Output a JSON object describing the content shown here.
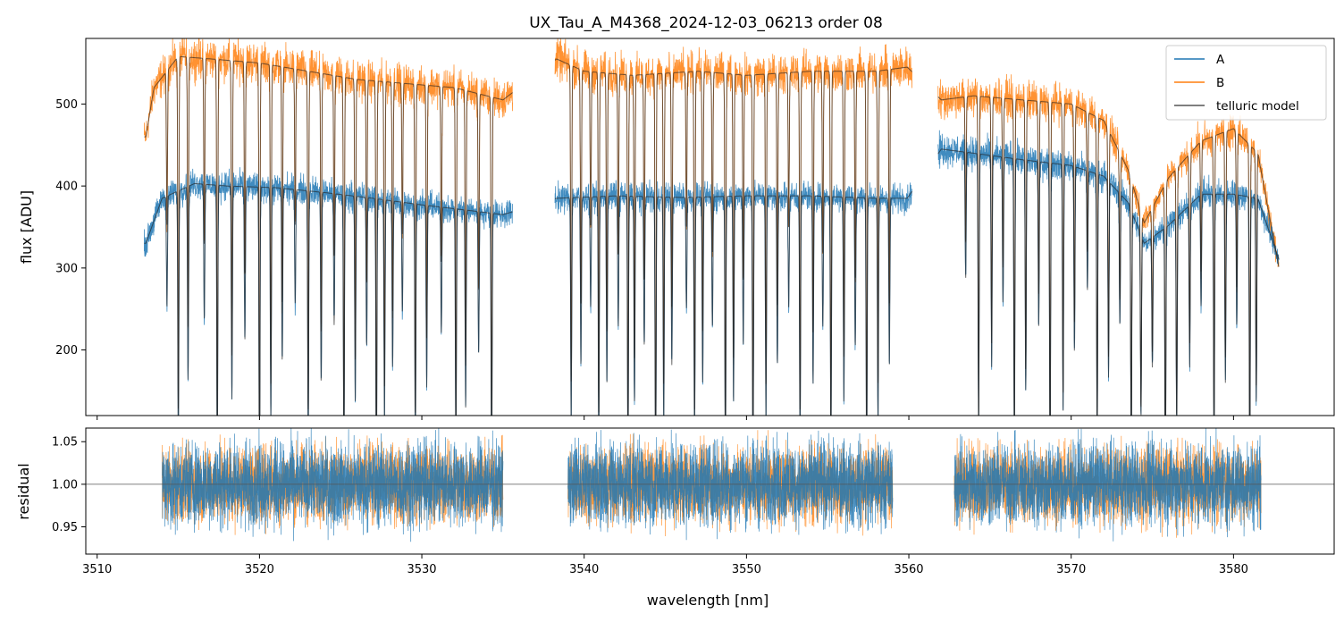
{
  "chart_data": [
    {
      "type": "line",
      "title": "UX_Tau_A_M4368_2024-12-03_06213  order 08",
      "xlabel": "",
      "ylabel": "flux [ADU]",
      "xlim": [
        3509.3,
        3586.2
      ],
      "ylim": [
        120,
        580
      ],
      "yticks": [
        200,
        300,
        400,
        500
      ],
      "grid": false,
      "legend": {
        "placement": "top-right",
        "entries": [
          {
            "label": "A",
            "color": "#1f77b4"
          },
          {
            "label": "B",
            "color": "#ff7f0e"
          },
          {
            "label": "telluric model",
            "color": "#555555"
          }
        ]
      },
      "segments": [
        [
          3512.9,
          3535.6
        ],
        [
          3538.2,
          3560.2
        ],
        [
          3561.8,
          3582.8
        ]
      ],
      "series": [
        {
          "name": "A",
          "color": "#1f77b4",
          "continuum_x": [
            3513.0,
            3514.0,
            3516.0,
            3518.0,
            3521.0,
            3524.0,
            3527.0,
            3530.0,
            3533.0,
            3535.0,
            3538.3,
            3542.0,
            3546.0,
            3550.0,
            3554.0,
            3558.0,
            3559.9,
            3562.0,
            3564.0,
            3567.0,
            3570.0,
            3572.0,
            3573.5,
            3574.5,
            3576.0,
            3578.0,
            3580.0,
            3581.5,
            3582.8
          ],
          "continuum_y": [
            330,
            385,
            403,
            400,
            398,
            392,
            385,
            377,
            370,
            365,
            385,
            388,
            386,
            388,
            388,
            385,
            385,
            445,
            440,
            432,
            425,
            412,
            380,
            330,
            352,
            390,
            390,
            385,
            310
          ]
        },
        {
          "name": "B",
          "color": "#ff7f0e",
          "continuum_x": [
            3513.0,
            3513.5,
            3515.0,
            3517.0,
            3520.0,
            3523.0,
            3526.0,
            3529.0,
            3532.0,
            3535.0,
            3538.3,
            3540.0,
            3543.0,
            3547.0,
            3550.0,
            3554.0,
            3558.0,
            3559.9,
            3562.0,
            3564.0,
            3567.0,
            3570.0,
            3572.0,
            3573.5,
            3574.5,
            3576.0,
            3578.0,
            3580.0,
            3581.5,
            3582.8
          ],
          "continuum_y": [
            460,
            520,
            558,
            555,
            550,
            540,
            530,
            525,
            520,
            505,
            555,
            540,
            535,
            540,
            535,
            540,
            540,
            545,
            505,
            510,
            505,
            500,
            480,
            420,
            355,
            410,
            455,
            470,
            440,
            300
          ]
        },
        {
          "name": "telluric model",
          "color": "#555555"
        }
      ],
      "absorption_lines_nm": [
        3514.3,
        3515.0,
        3515.6,
        3516.6,
        3517.4,
        3518.3,
        3519.1,
        3520.0,
        3520.7,
        3521.4,
        3522.2,
        3523.0,
        3523.8,
        3524.6,
        3525.2,
        3525.9,
        3526.6,
        3527.2,
        3527.7,
        3528.2,
        3528.8,
        3529.6,
        3530.3,
        3531.2,
        3532.1,
        3532.7,
        3533.5,
        3534.3,
        3539.2,
        3539.8,
        3540.4,
        3540.9,
        3541.4,
        3542.1,
        3542.7,
        3543.1,
        3543.7,
        3544.4,
        3544.9,
        3545.4,
        3546.3,
        3546.8,
        3547.3,
        3547.9,
        3548.7,
        3549.2,
        3549.8,
        3550.4,
        3551.2,
        3551.9,
        3552.6,
        3553.3,
        3554.1,
        3554.7,
        3555.2,
        3556.0,
        3556.7,
        3557.4,
        3558.1,
        3558.8,
        3563.5,
        3564.3,
        3565.1,
        3565.8,
        3566.5,
        3567.2,
        3568.0,
        3568.7,
        3569.5,
        3570.2,
        3571.0,
        3571.6,
        3572.3,
        3573.0,
        3573.7,
        3574.3,
        3575.0,
        3575.8,
        3576.5,
        3577.3,
        3578.0,
        3578.8,
        3579.5,
        3580.2,
        3581.0,
        3581.4
      ]
    },
    {
      "type": "line",
      "title": "",
      "xlabel": "wavelength [nm]",
      "ylabel": "residual",
      "xlim": [
        3509.3,
        3586.2
      ],
      "ylim": [
        0.918,
        1.066
      ],
      "yticks": [
        0.95,
        1.0,
        1.05
      ],
      "xticks": [
        3510,
        3520,
        3530,
        3540,
        3550,
        3560,
        3570,
        3580
      ],
      "reference_line": 1.0,
      "residual_ranges": [
        [
          3514.0,
          3535.0
        ],
        [
          3539.0,
          3559.0
        ],
        [
          3562.8,
          3581.7
        ]
      ],
      "series": [
        {
          "name": "A",
          "color": "#1f77b4",
          "scatter": 0.022
        },
        {
          "name": "B",
          "color": "#ff7f0e",
          "scatter": 0.02
        }
      ]
    }
  ]
}
